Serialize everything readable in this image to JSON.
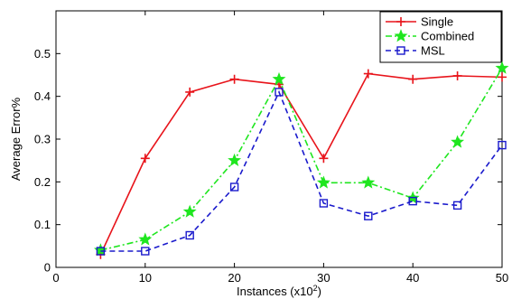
{
  "chart_data": {
    "type": "line",
    "title": "",
    "xlabel": "Instances (x10",
    "xlabel_exponent": "2",
    "xlabel_suffix": ")",
    "ylabel": "Average Error%",
    "xlim": [
      0,
      50
    ],
    "ylim": [
      0,
      0.6
    ],
    "xticks": [
      0,
      10,
      20,
      30,
      40,
      50
    ],
    "yticks": [
      0,
      0.1,
      0.2,
      0.3,
      0.4,
      0.5
    ],
    "xtick_labels": [
      "0",
      "10",
      "20",
      "30",
      "40",
      "50"
    ],
    "ytick_labels": [
      "0",
      "0.1",
      "0.2",
      "0.3",
      "0.4",
      "0.5"
    ],
    "grid": false,
    "legend_position": "top-right",
    "x": [
      5,
      10,
      15,
      20,
      25,
      30,
      35,
      40,
      45,
      50
    ],
    "series": [
      {
        "name": "Single",
        "color": "#e8141b",
        "line_style": "solid",
        "marker": "plus",
        "values": [
          0.03,
          0.255,
          0.41,
          0.44,
          0.428,
          0.255,
          0.453,
          0.44,
          0.448,
          0.445
        ]
      },
      {
        "name": "Combined",
        "color": "#1fe61f",
        "line_style": "dash-dot",
        "marker": "star",
        "values": [
          0.04,
          0.065,
          0.13,
          0.25,
          0.44,
          0.198,
          0.198,
          0.162,
          0.293,
          0.466
        ]
      },
      {
        "name": "MSL",
        "color": "#1a1acc",
        "line_style": "dashed",
        "marker": "square",
        "values": [
          0.038,
          0.038,
          0.075,
          0.188,
          0.41,
          0.15,
          0.12,
          0.155,
          0.145,
          0.286
        ]
      }
    ]
  }
}
